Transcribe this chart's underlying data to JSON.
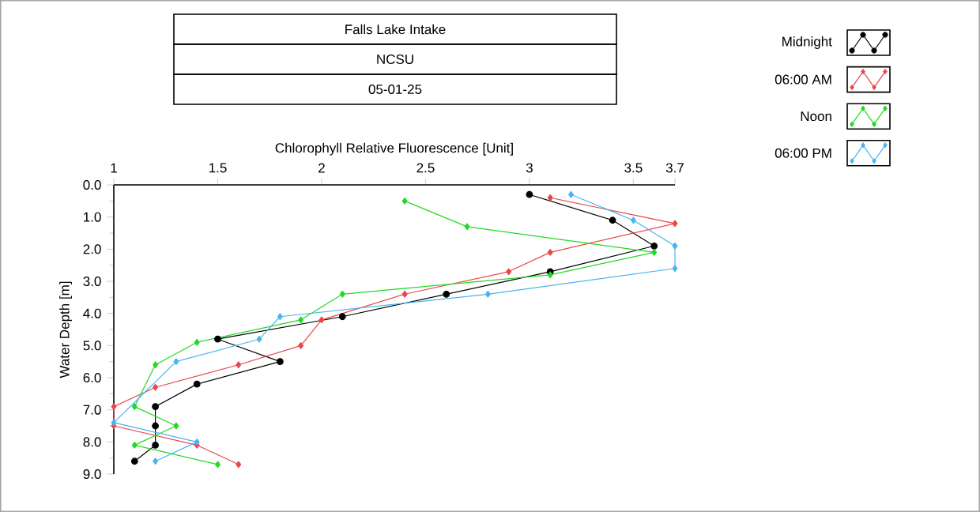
{
  "chart_data": {
    "type": "line",
    "title": "Falls Lake Intake",
    "subtitle": "NCSU",
    "annotations": [
      "05-01-25"
    ],
    "xlabel": "Chlorophyll Relative Fluorescence [Unit]",
    "ylabel": "Water Depth [m]",
    "xlim": [
      1,
      3.7
    ],
    "xticks": [
      1,
      1.5,
      2,
      2.5,
      3,
      3.5,
      3.7
    ],
    "ylim": [
      9,
      0
    ],
    "yticks": [
      {
        "value": 0,
        "label": "0.0"
      },
      {
        "value": 1,
        "label": "1.0"
      },
      {
        "value": 2,
        "label": "2.0"
      },
      {
        "value": 3,
        "label": "3.0"
      },
      {
        "value": 4,
        "label": "4.0"
      },
      {
        "value": 5,
        "label": "5.0"
      },
      {
        "value": 6,
        "label": "6.0"
      },
      {
        "value": 7,
        "label": "7.0"
      },
      {
        "value": 8,
        "label": "8.0"
      },
      {
        "value": 9,
        "label": "9.0"
      }
    ],
    "legend": "top right",
    "grid": false,
    "line_style": "solid",
    "series": [
      {
        "name": "Midnight",
        "color": "#000000",
        "marker": "circle",
        "x": [
          3.0,
          3.4,
          3.6,
          3.1,
          2.6,
          2.1,
          1.5,
          1.8,
          1.4,
          1.2,
          1.2,
          1.2,
          1.1
        ],
        "values": [
          0.3,
          1.1,
          1.9,
          2.7,
          3.4,
          4.1,
          4.8,
          5.5,
          6.2,
          6.9,
          7.5,
          8.1,
          8.6
        ]
      },
      {
        "name": "06:00 AM",
        "color": "#e8474a",
        "marker": "diamond",
        "x": [
          3.1,
          3.7,
          3.1,
          2.9,
          2.4,
          2.0,
          1.9,
          1.6,
          1.2,
          1.0,
          1.0,
          1.4,
          1.6
        ],
        "values": [
          0.4,
          1.2,
          2.1,
          2.7,
          3.4,
          4.2,
          5.0,
          5.6,
          6.3,
          6.9,
          7.5,
          8.1,
          8.7
        ]
      },
      {
        "name": "Noon",
        "color": "#22d922",
        "marker": "diamond",
        "x": [
          2.4,
          2.7,
          3.6,
          3.1,
          2.1,
          1.9,
          1.4,
          1.2,
          null,
          1.1,
          1.3,
          1.1,
          1.5
        ],
        "values": [
          0.5,
          1.3,
          2.1,
          2.8,
          3.4,
          4.2,
          4.9,
          5.6,
          null,
          6.9,
          7.5,
          8.1,
          8.7
        ]
      },
      {
        "name": "06:00 PM",
        "color": "#4ab4ee",
        "marker": "diamond",
        "x": [
          3.2,
          3.5,
          3.7,
          3.7,
          2.8,
          1.8,
          1.7,
          1.3,
          null,
          1.0,
          1.4,
          1.2
        ],
        "values": [
          0.3,
          1.1,
          1.9,
          2.6,
          3.4,
          4.1,
          4.8,
          5.5,
          null,
          7.4,
          8.0,
          8.6
        ]
      }
    ]
  }
}
